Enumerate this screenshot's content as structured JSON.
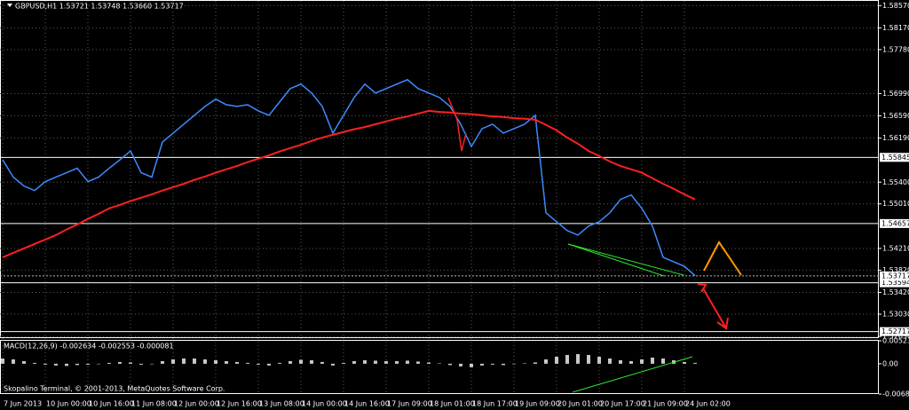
{
  "chart_data": [
    {
      "type": "line",
      "title": "GBPUSD,H1  1.53721 1.53748 1.53660 1.53717",
      "categories": [
        "7 Jun 2013",
        null,
        null,
        null,
        "10 Jun 00:00",
        null,
        null,
        null,
        "10 Jun 16:00",
        null,
        null,
        null,
        "11 Jun 08:00",
        null,
        null,
        null,
        "12 Jun 00:00",
        null,
        null,
        null,
        "12 Jun 16:00",
        null,
        null,
        null,
        "13 Jun 08:00",
        null,
        null,
        null,
        "14 Jun 00:00",
        null,
        null,
        null,
        "14 Jun 16:00",
        null,
        null,
        null,
        "17 Jun 09:00",
        null,
        null,
        null,
        "18 Jun 01:00",
        null,
        null,
        null,
        "18 Jun 17:00",
        null,
        null,
        null,
        "19 Jun 09:00",
        null,
        null,
        null,
        "20 Jun 01:00",
        null,
        null,
        null,
        "20 Jun 17:00",
        null,
        null,
        null,
        "21 Jun 09:00",
        null,
        null,
        null,
        "24 Jun 02:00",
        null
      ],
      "series": [
        {
          "color": "#3d8bff",
          "values": [
            1.558,
            1.5549,
            1.5533,
            1.5525,
            1.5541,
            1.5549,
            1.5557,
            1.5565,
            1.5541,
            1.5549,
            1.5565,
            1.558,
            1.5596,
            1.5557,
            1.5549,
            1.5612,
            1.5628,
            1.5644,
            1.566,
            1.5676,
            1.5689,
            1.5679,
            1.5676,
            1.5679,
            1.5668,
            1.566,
            1.5684,
            1.5708,
            1.5716,
            1.57,
            1.5676,
            1.5628,
            1.566,
            1.5692,
            1.5716,
            1.57,
            1.5708,
            1.5716,
            1.5724,
            1.5708,
            1.57,
            1.5692,
            1.5676,
            1.5644,
            1.5604,
            1.5636,
            1.5644,
            1.5628,
            1.5636,
            1.5644,
            1.566,
            1.5485,
            1.5469,
            1.5453,
            1.5445,
            1.5461,
            1.5469,
            1.5485,
            1.5509,
            1.5517,
            1.5493,
            1.5461,
            1.5405,
            1.5397,
            1.5389,
            1.5372
          ]
        },
        {
          "color": "#ff2020",
          "values": [
            1.5405,
            1.5413,
            1.5421,
            1.5429,
            1.5437,
            1.5445,
            1.5455,
            1.5464,
            1.5474,
            1.5483,
            1.5493,
            1.5499,
            1.5506,
            1.5512,
            1.5518,
            1.5525,
            1.5531,
            1.5537,
            1.5544,
            1.555,
            1.5557,
            1.5563,
            1.5569,
            1.5576,
            1.5582,
            1.5588,
            1.5595,
            1.5601,
            1.5607,
            1.5614,
            1.562,
            1.5625,
            1.563,
            1.5635,
            1.5639,
            1.5644,
            1.5649,
            1.5654,
            1.5658,
            1.5663,
            1.5668,
            1.5666,
            1.5665,
            1.5663,
            1.5662,
            1.566,
            1.5658,
            1.5657,
            1.5655,
            1.5654,
            1.5652,
            1.5643,
            1.5633,
            1.562,
            1.5609,
            1.5596,
            1.5587,
            1.5577,
            1.5569,
            1.5563,
            1.5557,
            1.5547,
            1.5537,
            1.5528,
            1.5518,
            1.5509
          ]
        }
      ],
      "ylim": [
        1.526,
        1.5867
      ],
      "yticks": [
        {
          "value": 1.5857,
          "label": "1.58570"
        },
        {
          "value": 1.5817,
          "label": "1.58170"
        },
        {
          "value": 1.5778,
          "label": "1.57780"
        },
        {
          "value": 1.5699,
          "label": "1.56990"
        },
        {
          "value": 1.5659,
          "label": "1.56590"
        },
        {
          "value": 1.5619,
          "label": "1.56190"
        },
        {
          "value": 1.554,
          "label": "1.55400"
        },
        {
          "value": 1.5501,
          "label": "1.55010"
        },
        {
          "value": 1.5421,
          "label": "1.54210"
        },
        {
          "value": 1.5382,
          "label": "1.53820"
        },
        {
          "value": 1.5342,
          "label": "1.53420"
        },
        {
          "value": 1.5303,
          "label": "1.53030"
        },
        {
          "value": 1.5263,
          "label": "1.52630"
        }
      ],
      "levels": [
        1.55845,
        1.54657,
        1.53594,
        1.52717
      ],
      "last_price": 1.53717,
      "grid": true
    },
    {
      "type": "bar",
      "title": "MACD(12,26,9) -0.002634 -0.002553 -0.000081",
      "annotation": "Skopalino Terminal, © 2001-2013, MetaQuotes Software Corp.",
      "values": [
        0.0012,
        0.001,
        0.0006,
        0.0002,
        -0.0002,
        -0.0004,
        -0.0005,
        -0.0003,
        -0.0002,
        -0.0001,
        0.0002,
        0.0004,
        0.0003,
        -0.0002,
        -0.0001,
        0.0006,
        0.001,
        0.0012,
        0.0012,
        0.001,
        0.0008,
        0.0006,
        0.0004,
        0.0002,
        -0.0002,
        -0.0004,
        0.0002,
        0.0006,
        0.0009,
        0.0008,
        0.0004,
        -0.0004,
        0.0002,
        0.0006,
        0.0008,
        0.0007,
        0.0006,
        0.0006,
        0.0007,
        0.0005,
        0.0003,
        0.0001,
        -0.0003,
        -0.0006,
        -0.0008,
        -0.0004,
        -0.0002,
        -0.0003,
        -0.0001,
        0.0001,
        0.0003,
        0.001,
        0.0016,
        0.002,
        0.0022,
        0.002,
        0.0016,
        0.0012,
        0.0008,
        0.0006,
        0.001,
        0.0014,
        0.0012,
        0.0008,
        0.0004,
        0.0002
      ],
      "color": "#c8c8c8",
      "ylim": [
        -0.006895,
        0.005232
      ],
      "yticks": [
        0.005232,
        {
          "value": 0,
          "label": "0.00"
        },
        -0.006895
      ]
    }
  ]
}
